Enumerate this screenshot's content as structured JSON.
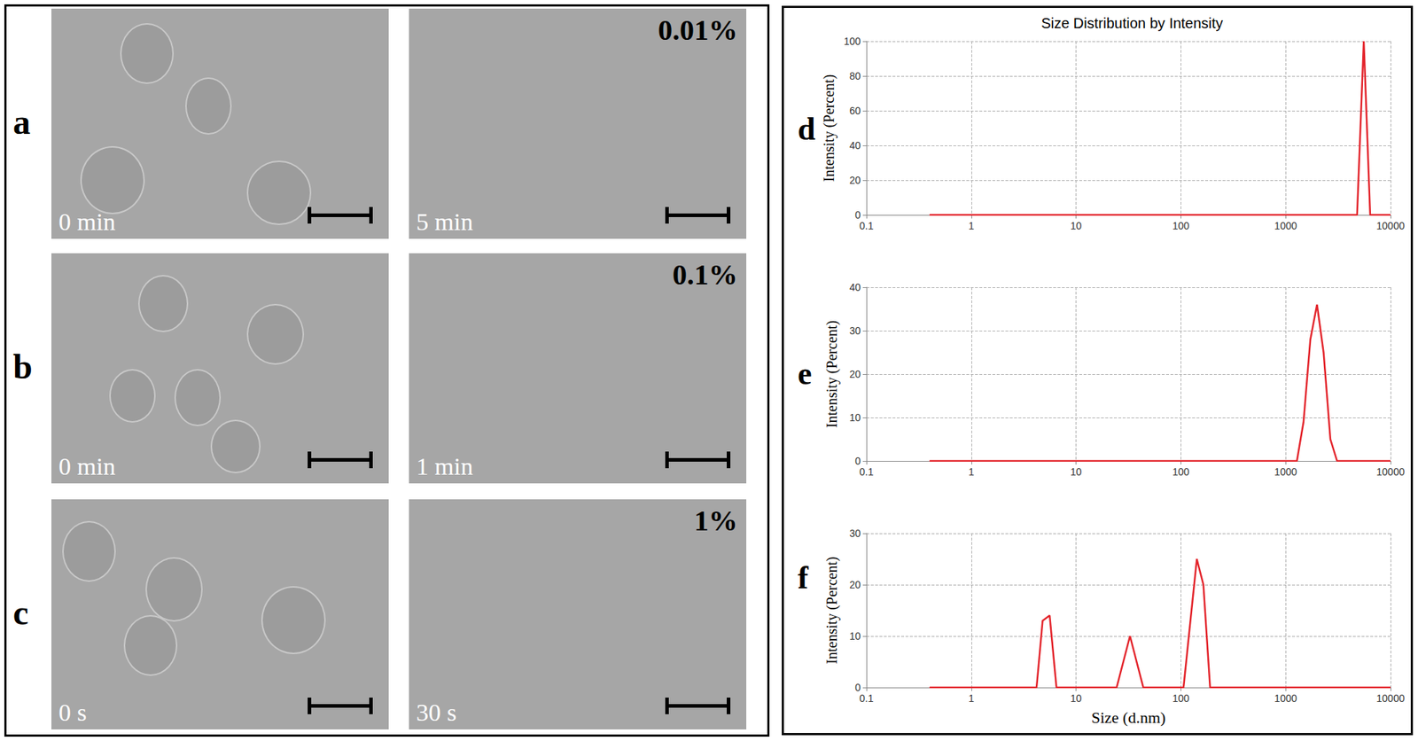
{
  "images": {
    "rows": [
      {
        "label": "a",
        "concentration": "0.01%",
        "times": [
          "0 min",
          "5 min"
        ]
      },
      {
        "label": "b",
        "concentration": "0.1%",
        "times": [
          "0 min",
          "1 min"
        ]
      },
      {
        "label": "c",
        "concentration": "1%",
        "times": [
          "0 s",
          "30 s"
        ]
      }
    ]
  },
  "chart_data": [
    {
      "type": "line",
      "annotation": "d",
      "title": "Size Distribution by Intensity",
      "y_label": "Intensity (Percent)",
      "log": "x",
      "grid": true,
      "xlim": [
        0.1,
        10000
      ],
      "xticks": [
        0.1,
        1,
        10,
        100,
        1000,
        10000
      ],
      "ylim": [
        0,
        100
      ],
      "yticks": [
        0,
        20,
        40,
        60,
        80,
        100
      ],
      "series": [
        {
          "color": "#e3242b",
          "x": [
            0.4,
            4800,
            5560,
            6400,
            10000
          ],
          "values": [
            0,
            0,
            100,
            0,
            0
          ]
        }
      ]
    },
    {
      "type": "line",
      "annotation": "e",
      "y_label": "Intensity (Percent)",
      "log": "x",
      "grid": true,
      "xlim": [
        0.1,
        10000
      ],
      "xticks": [
        0.1,
        1,
        10,
        100,
        1000,
        10000
      ],
      "ylim": [
        0,
        40
      ],
      "yticks": [
        0,
        10,
        20,
        30,
        40
      ],
      "series": [
        {
          "color": "#e3242b",
          "x": [
            0.4,
            1280,
            1480,
            1720,
            1990,
            2300,
            2670,
            3090,
            10000
          ],
          "values": [
            0,
            0,
            9,
            28,
            36,
            25,
            5,
            0,
            0
          ]
        }
      ]
    },
    {
      "type": "line",
      "annotation": "f",
      "y_label": "Intensity (Percent)",
      "x_label": "Size (d.nm)",
      "log": "x",
      "grid": true,
      "xlim": [
        0.1,
        10000
      ],
      "xticks": [
        0.1,
        1,
        10,
        100,
        1000,
        10000
      ],
      "ylim": [
        0,
        30
      ],
      "yticks": [
        0,
        10,
        20,
        30
      ],
      "series": [
        {
          "color": "#e3242b",
          "x": [
            0.4,
            4.2,
            4.8,
            5.6,
            6.5,
            24.4,
            32.7,
            43.8,
            106,
            142,
            164,
            190,
            10000
          ],
          "values": [
            0,
            0,
            13,
            14,
            0,
            0,
            10,
            0,
            0,
            25,
            20,
            0,
            0
          ]
        }
      ]
    }
  ]
}
